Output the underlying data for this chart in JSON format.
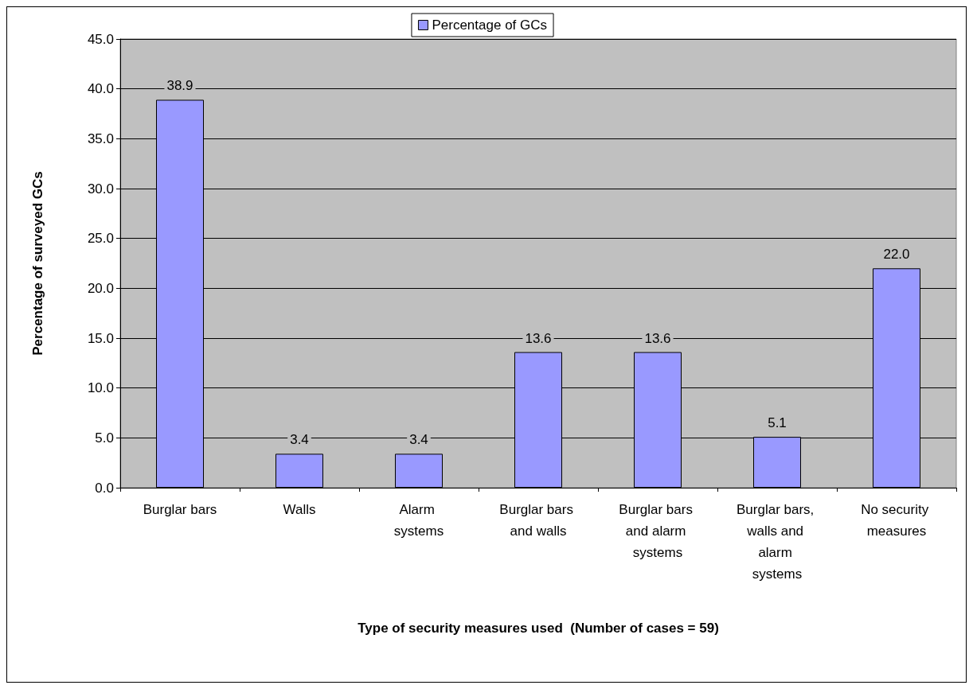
{
  "chart_data": {
    "type": "bar",
    "xlabel": "Type of security measures used  (Number of cases = 59)",
    "ylabel": "Percentage of surveyed GCs",
    "categories": [
      "Burglar bars",
      "Walls",
      "Alarm systems",
      "Burglar bars and walls",
      "Burglar bars and alarm systems",
      "Burglar bars, walls and alarm systems",
      "No security measures"
    ],
    "series": [
      {
        "name": "Percentage of GCs",
        "color": "#9999ff",
        "values": [
          38.9,
          3.4,
          3.4,
          13.6,
          13.6,
          5.1,
          22.0
        ],
        "value_labels": [
          "38.9",
          "3.4",
          "3.4",
          "13.6",
          "13.6",
          "5.1",
          "22.0"
        ]
      }
    ],
    "ylim": [
      0,
      45
    ],
    "yticks": [
      {
        "value": 0,
        "label": "0.0"
      },
      {
        "value": 5,
        "label": "5.0"
      },
      {
        "value": 10,
        "label": "10.0"
      },
      {
        "value": 15,
        "label": "15.0"
      },
      {
        "value": 20,
        "label": "20.0"
      },
      {
        "value": 25,
        "label": "25.0"
      },
      {
        "value": 30,
        "label": "30.0"
      },
      {
        "value": 35,
        "label": "35.0"
      },
      {
        "value": 40,
        "label": "40.0"
      },
      {
        "value": 45,
        "label": "45.0"
      }
    ],
    "grid": "y",
    "legend": "top"
  }
}
